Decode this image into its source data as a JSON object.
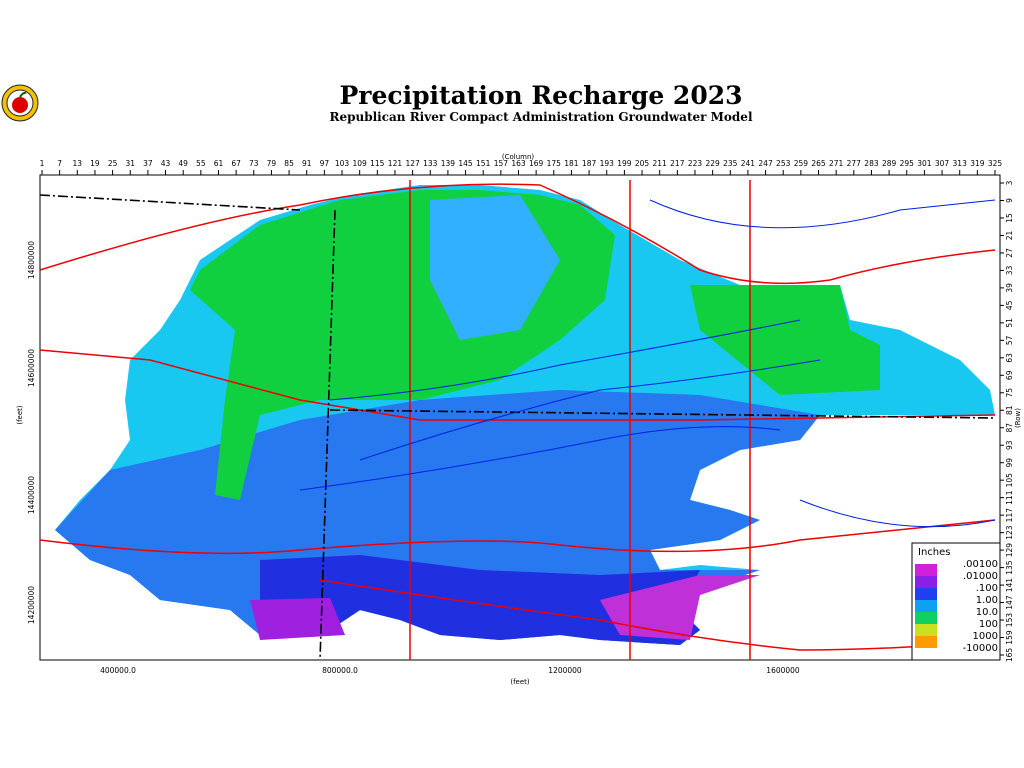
{
  "header": {
    "title": "Precipitation Recharge 2023",
    "subtitle": "Republican River Compact Administration Groundwater Model"
  },
  "column_axis": {
    "label": "(Column)",
    "ticks": [
      "1",
      "7",
      "13",
      "19",
      "25",
      "31",
      "37",
      "43",
      "49",
      "55",
      "61",
      "67",
      "73",
      "79",
      "85",
      "91",
      "97",
      "103",
      "109",
      "115",
      "121",
      "127",
      "133",
      "139",
      "145",
      "151",
      "157",
      "163",
      "169",
      "175",
      "181",
      "187",
      "193",
      "199",
      "205",
      "211",
      "217",
      "223",
      "229",
      "235",
      "241",
      "247",
      "253",
      "259",
      "265",
      "271",
      "277",
      "283",
      "289",
      "295",
      "301",
      "307",
      "313",
      "319",
      "325"
    ]
  },
  "row_axis": {
    "label": "(Row)",
    "ticks": [
      "3",
      "9",
      "15",
      "21",
      "27",
      "33",
      "39",
      "45",
      "51",
      "57",
      "63",
      "69",
      "75",
      "81",
      "87",
      "93",
      "99",
      "105",
      "111",
      "117",
      "123",
      "129",
      "135",
      "141",
      "147",
      "153",
      "159",
      "165"
    ]
  },
  "y_axis": {
    "label": "(feet)",
    "ticks": [
      "14800000",
      "14600000",
      "14400000",
      "14200000"
    ]
  },
  "x_axis": {
    "label": "(feet)",
    "ticks": [
      "400000.0",
      "800000.0",
      "1200000",
      "1600000"
    ]
  },
  "legend": {
    "title": "Inches",
    "labels": [
      ".00100",
      ".01000",
      ".100",
      "1.00",
      "10.0",
      "100",
      "1000",
      "-10000"
    ]
  }
}
